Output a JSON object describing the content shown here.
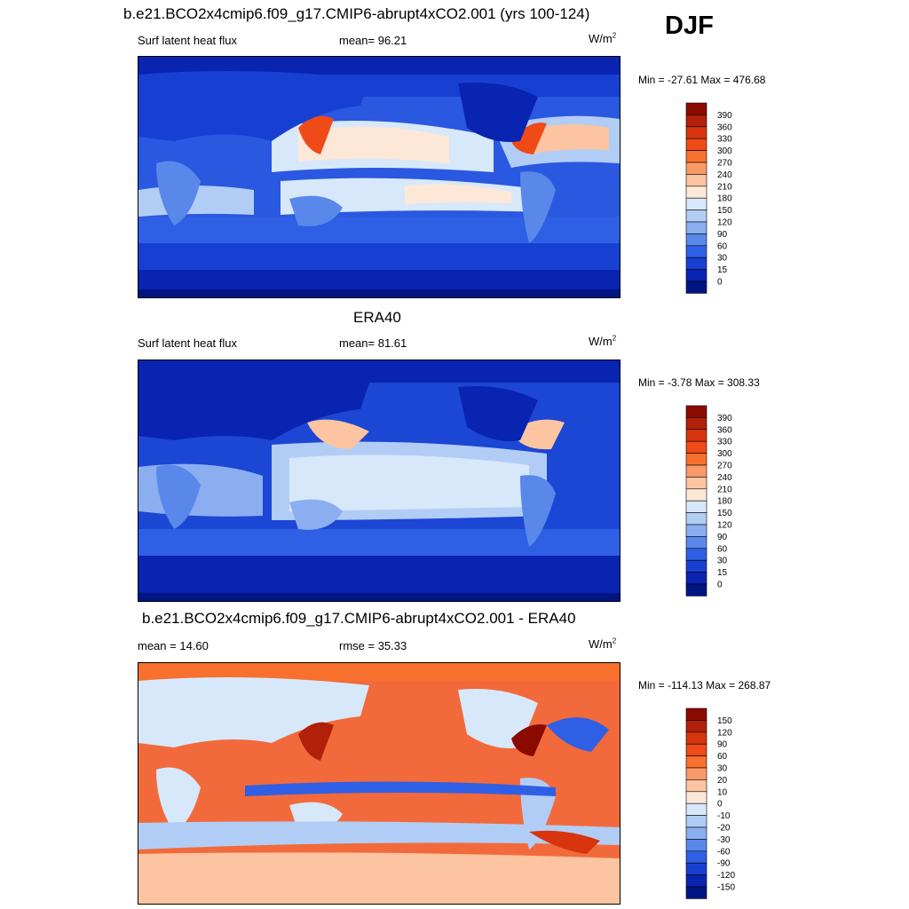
{
  "season": "DJF",
  "panels": [
    {
      "title": "b.e21.BCO2x4cmip6.f09_g17.CMIP6-abrupt4xCO2.001 (yrs 100-124)",
      "left": "Surf latent heat flux",
      "center": "mean=  96.21",
      "units": "W/m",
      "units_sup": "2",
      "minmax": "Min = -27.61 Max = 476.68",
      "colorbar": {
        "labels": [
          "390",
          "360",
          "330",
          "300",
          "270",
          "240",
          "210",
          "180",
          "150",
          "120",
          "90",
          "60",
          "30",
          "15",
          "0"
        ],
        "colors": [
          "#8b0a00",
          "#b2200a",
          "#d8340d",
          "#f04a18",
          "#f8702e",
          "#fa9a68",
          "#fcc4a0",
          "#fde8d8",
          "#d8e8fb",
          "#b2cdf5",
          "#8aaef0",
          "#5a88ea",
          "#2f5fe4",
          "#1740d2",
          "#0824b0",
          "#001484"
        ]
      }
    },
    {
      "title": "ERA40",
      "left": "Surf latent heat flux",
      "center": "mean=  81.61",
      "units": "W/m",
      "units_sup": "2",
      "minmax": "Min =  -3.78 Max = 308.33",
      "colorbar": {
        "labels": [
          "390",
          "360",
          "330",
          "300",
          "270",
          "240",
          "210",
          "180",
          "150",
          "120",
          "90",
          "60",
          "30",
          "15",
          "0"
        ],
        "colors": [
          "#8b0a00",
          "#b2200a",
          "#d8340d",
          "#f04a18",
          "#f8702e",
          "#fa9a68",
          "#fcc4a0",
          "#fde8d8",
          "#d8e8fb",
          "#b2cdf5",
          "#8aaef0",
          "#5a88ea",
          "#2f5fe4",
          "#1740d2",
          "#0824b0",
          "#001484"
        ]
      }
    },
    {
      "title": "b.e21.BCO2x4cmip6.f09_g17.CMIP6-abrupt4xCO2.001 - ERA40",
      "left": "mean =  14.60",
      "center": "rmse =  35.33",
      "units": "W/m",
      "units_sup": "2",
      "minmax": "Min = -114.13 Max = 268.87",
      "colorbar": {
        "labels": [
          "150",
          "120",
          "90",
          "60",
          "30",
          "20",
          "10",
          "0",
          "-10",
          "-20",
          "-30",
          "-60",
          "-90",
          "-120",
          "-150"
        ],
        "colors": [
          "#8b0a00",
          "#b2200a",
          "#d8340d",
          "#f04a18",
          "#f8702e",
          "#fa9a68",
          "#fcc4a0",
          "#fde8d8",
          "#d8e8fb",
          "#b2cdf5",
          "#8aaef0",
          "#5a88ea",
          "#2f5fe4",
          "#1740d2",
          "#0824b0",
          "#001484"
        ]
      }
    }
  ],
  "colors": {
    "abrupt_base": "#2a58e0",
    "era_base": "#1c46d4",
    "diff_base": "#f26a3c"
  }
}
